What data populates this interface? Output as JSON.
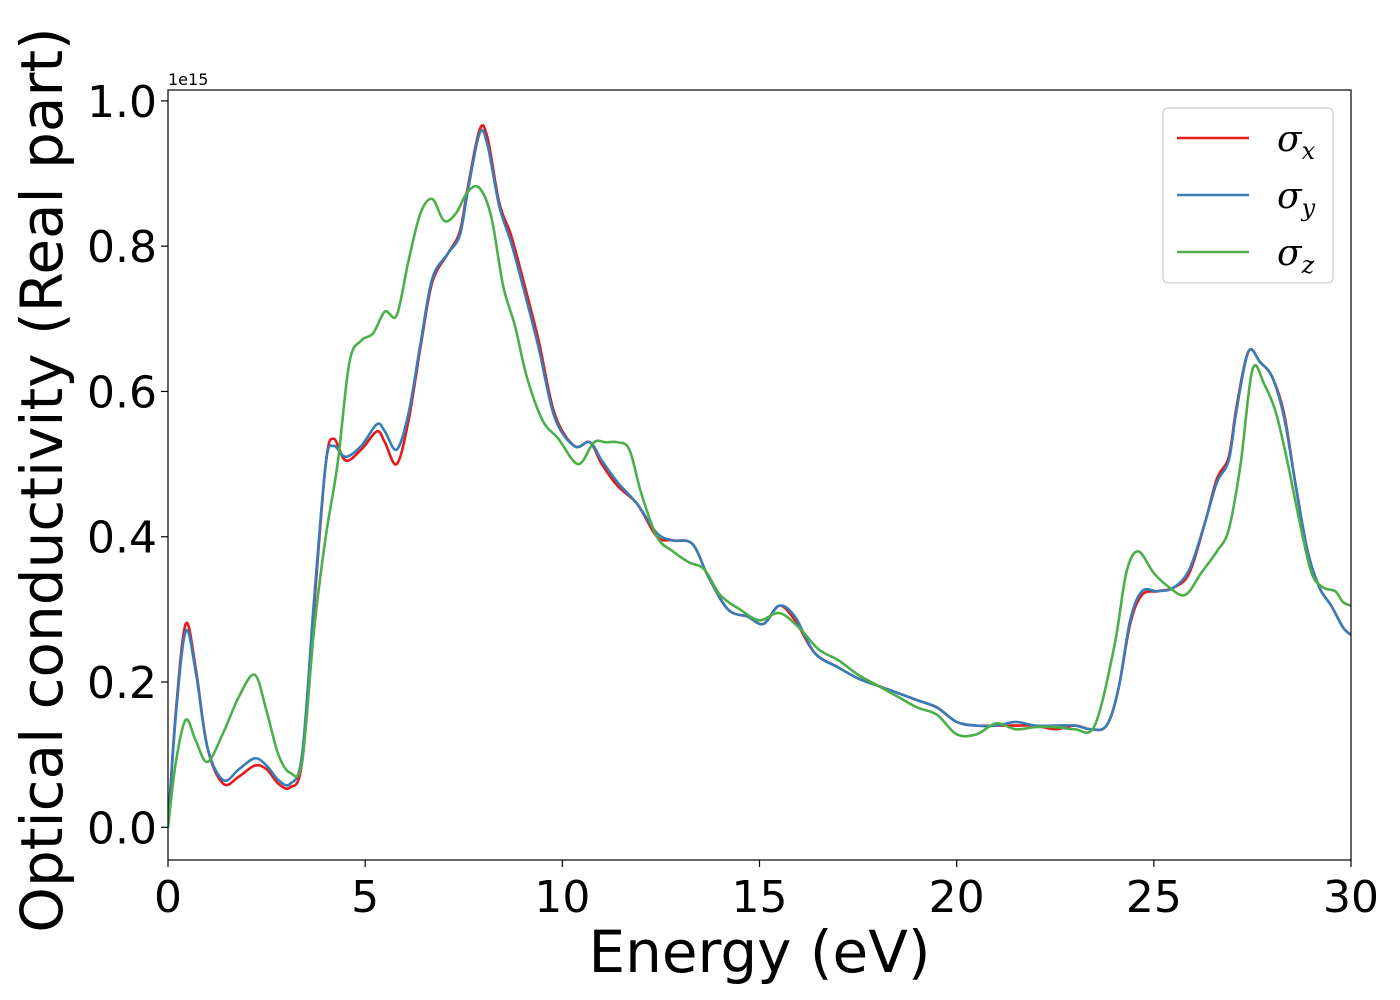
{
  "chart_data": {
    "type": "line",
    "xlabel": "Energy (eV)",
    "ylabel": "Optical conductivity (Real part)",
    "y_offset_label": "1e15",
    "xlim": [
      0,
      30
    ],
    "ylim": [
      -0.045,
      1.015
    ],
    "xticks": [
      0,
      5,
      10,
      15,
      20,
      25,
      30
    ],
    "xtick_labels": [
      "0",
      "5",
      "10",
      "15",
      "20",
      "25",
      "30"
    ],
    "yticks": [
      0.0,
      0.2,
      0.4,
      0.6,
      0.8,
      1.0
    ],
    "ytick_labels": [
      "0.0",
      "0.2",
      "0.4",
      "0.6",
      "0.8",
      "1.0"
    ],
    "grid": false,
    "legend_position": "top-right",
    "series": [
      {
        "name": "σx",
        "symbol": "σ",
        "sub": "x",
        "color": "#e41a1c",
        "x": [
          0,
          0.2,
          0.45,
          0.7,
          1.0,
          1.4,
          1.8,
          2.2,
          2.5,
          2.8,
          3.1,
          3.4,
          3.7,
          4.0,
          4.2,
          4.5,
          4.9,
          5.3,
          5.5,
          5.8,
          6.1,
          6.4,
          6.7,
          7.1,
          7.4,
          7.6,
          7.9,
          8.1,
          8.4,
          8.7,
          9.0,
          9.4,
          9.8,
          10.3,
          10.7,
          11.0,
          11.4,
          11.9,
          12.4,
          12.8,
          13.3,
          13.7,
          14.2,
          14.7,
          15.1,
          15.5,
          15.9,
          16.4,
          17.0,
          17.5,
          18.0,
          18.5,
          19.0,
          19.5,
          20.0,
          20.5,
          21.0,
          21.5,
          22.0,
          22.5,
          23.0,
          23.4,
          23.8,
          24.1,
          24.4,
          24.7,
          25.1,
          25.5,
          25.9,
          26.3,
          26.6,
          26.9,
          27.1,
          27.4,
          27.7,
          28.0,
          28.3,
          28.6,
          28.9,
          29.2,
          29.5,
          29.8,
          30.0
        ],
        "y": [
          0.0,
          0.16,
          0.28,
          0.22,
          0.11,
          0.06,
          0.07,
          0.085,
          0.08,
          0.06,
          0.055,
          0.09,
          0.3,
          0.5,
          0.535,
          0.505,
          0.52,
          0.545,
          0.53,
          0.5,
          0.56,
          0.66,
          0.75,
          0.79,
          0.82,
          0.88,
          0.96,
          0.95,
          0.86,
          0.815,
          0.755,
          0.67,
          0.57,
          0.525,
          0.53,
          0.5,
          0.47,
          0.445,
          0.4,
          0.395,
          0.39,
          0.345,
          0.3,
          0.29,
          0.28,
          0.305,
          0.285,
          0.24,
          0.22,
          0.205,
          0.195,
          0.185,
          0.175,
          0.165,
          0.145,
          0.14,
          0.14,
          0.14,
          0.14,
          0.135,
          0.14,
          0.135,
          0.14,
          0.19,
          0.28,
          0.32,
          0.325,
          0.33,
          0.35,
          0.42,
          0.48,
          0.51,
          0.58,
          0.655,
          0.64,
          0.62,
          0.57,
          0.47,
          0.38,
          0.33,
          0.305,
          0.275,
          0.265
        ]
      },
      {
        "name": "σy",
        "symbol": "σ",
        "sub": "y",
        "color": "#377eb8",
        "x": [
          0,
          0.2,
          0.45,
          0.7,
          1.0,
          1.4,
          1.8,
          2.2,
          2.5,
          2.8,
          3.1,
          3.4,
          3.7,
          4.0,
          4.2,
          4.5,
          4.9,
          5.3,
          5.5,
          5.8,
          6.1,
          6.4,
          6.7,
          7.1,
          7.4,
          7.6,
          7.9,
          8.1,
          8.4,
          8.7,
          9.0,
          9.4,
          9.8,
          10.3,
          10.7,
          11.0,
          11.4,
          11.9,
          12.4,
          12.8,
          13.3,
          13.7,
          14.2,
          14.7,
          15.1,
          15.5,
          15.9,
          16.4,
          17.0,
          17.5,
          18.0,
          18.5,
          19.0,
          19.5,
          20.0,
          20.5,
          21.0,
          21.5,
          22.0,
          22.5,
          23.0,
          23.4,
          23.8,
          24.1,
          24.4,
          24.7,
          25.1,
          25.5,
          25.9,
          26.3,
          26.6,
          26.9,
          27.1,
          27.4,
          27.7,
          28.0,
          28.3,
          28.6,
          28.9,
          29.2,
          29.5,
          29.8,
          30.0
        ],
        "y": [
          0.0,
          0.155,
          0.27,
          0.215,
          0.11,
          0.065,
          0.08,
          0.095,
          0.085,
          0.065,
          0.06,
          0.1,
          0.31,
          0.5,
          0.525,
          0.51,
          0.525,
          0.555,
          0.545,
          0.52,
          0.57,
          0.665,
          0.755,
          0.79,
          0.815,
          0.875,
          0.955,
          0.94,
          0.855,
          0.805,
          0.745,
          0.66,
          0.565,
          0.525,
          0.53,
          0.505,
          0.475,
          0.445,
          0.405,
          0.395,
          0.39,
          0.345,
          0.3,
          0.29,
          0.28,
          0.305,
          0.29,
          0.24,
          0.22,
          0.205,
          0.195,
          0.185,
          0.175,
          0.165,
          0.145,
          0.14,
          0.14,
          0.145,
          0.14,
          0.14,
          0.14,
          0.135,
          0.14,
          0.19,
          0.285,
          0.325,
          0.325,
          0.33,
          0.355,
          0.42,
          0.475,
          0.505,
          0.575,
          0.655,
          0.64,
          0.62,
          0.565,
          0.47,
          0.38,
          0.33,
          0.305,
          0.275,
          0.265
        ]
      },
      {
        "name": "σz",
        "symbol": "σ",
        "sub": "z",
        "color": "#4daf4a",
        "x": [
          0,
          0.2,
          0.45,
          0.7,
          1.0,
          1.4,
          1.8,
          2.2,
          2.5,
          2.8,
          3.1,
          3.4,
          3.7,
          4.0,
          4.3,
          4.6,
          4.9,
          5.2,
          5.5,
          5.8,
          6.1,
          6.4,
          6.7,
          7.0,
          7.3,
          7.6,
          7.9,
          8.2,
          8.5,
          8.8,
          9.1,
          9.5,
          9.9,
          10.4,
          10.8,
          11.1,
          11.4,
          11.7,
          12.0,
          12.4,
          12.8,
          13.2,
          13.6,
          14.0,
          14.5,
          15.0,
          15.5,
          16.0,
          16.5,
          17.0,
          17.5,
          18.0,
          18.5,
          19.0,
          19.5,
          20.0,
          20.5,
          21.0,
          21.5,
          22.0,
          22.5,
          23.0,
          23.5,
          24.0,
          24.3,
          24.6,
          25.0,
          25.4,
          25.8,
          26.2,
          26.6,
          26.9,
          27.2,
          27.5,
          27.8,
          28.1,
          28.4,
          28.7,
          29.0,
          29.3,
          29.6,
          29.8,
          30.0
        ],
        "y": [
          0.0,
          0.09,
          0.148,
          0.12,
          0.09,
          0.13,
          0.18,
          0.21,
          0.16,
          0.1,
          0.075,
          0.09,
          0.27,
          0.4,
          0.5,
          0.64,
          0.67,
          0.68,
          0.71,
          0.705,
          0.78,
          0.845,
          0.865,
          0.835,
          0.845,
          0.875,
          0.88,
          0.84,
          0.745,
          0.69,
          0.62,
          0.56,
          0.535,
          0.5,
          0.53,
          0.53,
          0.53,
          0.52,
          0.46,
          0.4,
          0.38,
          0.365,
          0.355,
          0.32,
          0.3,
          0.285,
          0.295,
          0.275,
          0.245,
          0.23,
          0.21,
          0.195,
          0.18,
          0.165,
          0.155,
          0.128,
          0.128,
          0.143,
          0.135,
          0.138,
          0.138,
          0.135,
          0.14,
          0.25,
          0.35,
          0.38,
          0.35,
          0.33,
          0.32,
          0.35,
          0.38,
          0.41,
          0.5,
          0.63,
          0.61,
          0.57,
          0.5,
          0.42,
          0.35,
          0.33,
          0.325,
          0.31,
          0.305
        ]
      }
    ]
  }
}
